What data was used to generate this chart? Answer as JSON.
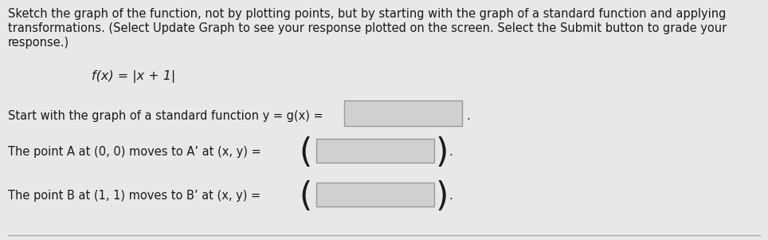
{
  "background_color": "#e8e8e8",
  "para_line1": "Sketch the graph of the function, not by plotting points, but by starting with the graph of a standard function and applying",
  "para_line2": "transformations. (Select Update Graph to see your response plotted on the screen. Select the Submit button to grade your",
  "para_line3": "response.)",
  "function_text": "f(x) = |x + 1|",
  "line1_text": "Start with the graph of a standard function y = g(x) = ",
  "line2_text": "The point A at (0, 0) moves to A’ at (x, y) = ",
  "line3_text": "The point B at (1, 1) moves to B’ at (x, y) = ",
  "box_facecolor": "#d0d0d0",
  "box_edgecolor": "#999999",
  "font_size_para": 10.5,
  "font_size_func": 11.5,
  "font_size_lines": 10.5,
  "text_color": "#1a1a1a",
  "figw": 9.64,
  "figh": 3.01,
  "dpi": 100
}
